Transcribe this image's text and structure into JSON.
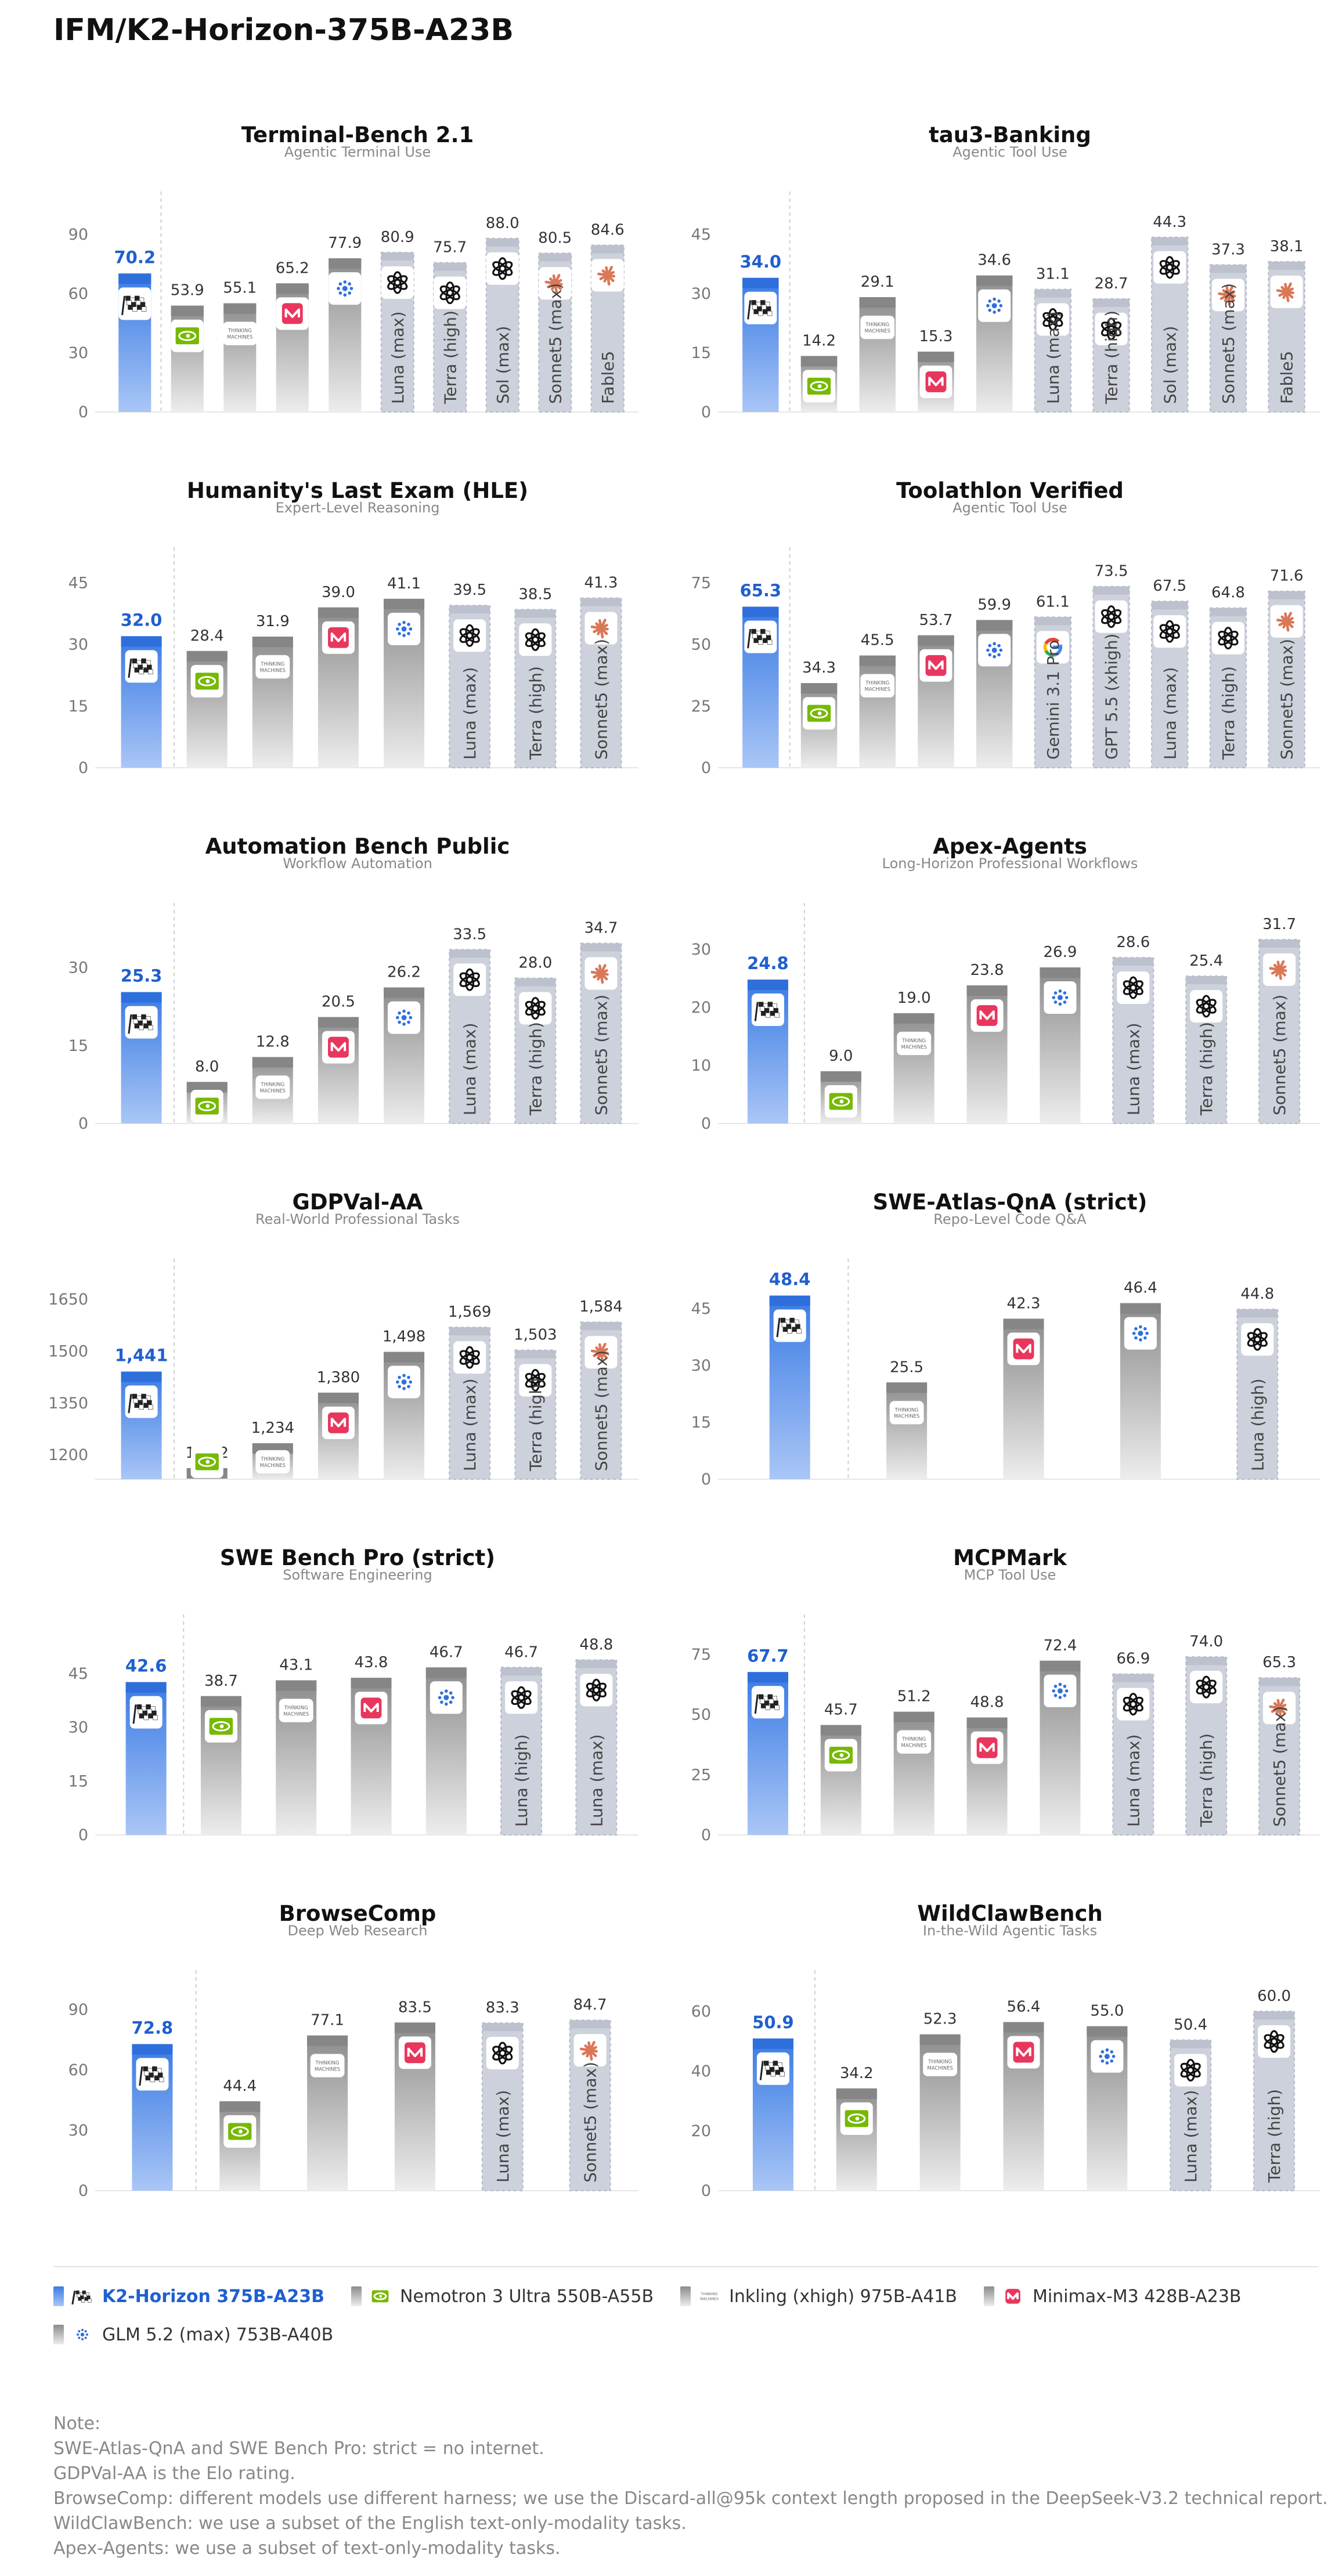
{
  "title": "IFM/K2-Horizon-375B-A23B",
  "colors": {
    "primary_top": "#3a7be4",
    "primary_bottom": "#aac6f6",
    "primary_label": "#1f5fcf",
    "open_top": "#8c8c8c",
    "open_bottom": "#ededed",
    "closed_fill": "#cdd1db",
    "closed_border": "#b4b9c8",
    "label": "#333333",
    "axis_text": "#777777",
    "subtitle": "#888888"
  },
  "models": {
    "k2": {
      "legend": "K2-Horizon 375B-A23B",
      "icon": "checkered-flag-icon",
      "kind": "primary"
    },
    "nemotron": {
      "legend": "Nemotron 3 Ultra 550B-A55B",
      "icon": "nvidia-eye-icon",
      "kind": "open"
    },
    "inkling": {
      "legend": "Inkling (xhigh) 975B-A41B",
      "icon": "thinking-machines-icon",
      "icon_text": "THINKING MACHINES",
      "kind": "open"
    },
    "minimax": {
      "legend": "Minimax-M3 428B-A23B",
      "icon": "minimax-wave-icon",
      "kind": "open"
    },
    "glm": {
      "legend": "GLM 5.2 (max) 753B-A40B",
      "icon": "glm-spark-icon",
      "kind": "open"
    },
    "openai": {
      "icon": "openai-knot-icon",
      "kind": "closed"
    },
    "anthropic": {
      "icon": "anthropic-burst-icon",
      "kind": "closed"
    },
    "google": {
      "icon": "google-g-icon",
      "kind": "closed"
    }
  },
  "legend_order": [
    "k2",
    "nemotron",
    "inkling",
    "minimax",
    "glm"
  ],
  "chart_data": [
    {
      "type": "bar",
      "title": "Terminal-Bench 2.1",
      "subtitle": "Agentic Terminal Use",
      "ylim": [
        0,
        100
      ],
      "yticks": [
        0,
        30,
        60,
        90
      ],
      "bars": [
        {
          "model": "k2",
          "value": 70.2,
          "label": "70.2"
        },
        {
          "model": "nemotron",
          "value": 53.9,
          "label": "53.9"
        },
        {
          "model": "inkling",
          "value": 55.1,
          "label": "55.1"
        },
        {
          "model": "minimax",
          "value": 65.2,
          "label": "65.2"
        },
        {
          "model": "glm",
          "value": 77.9,
          "label": "77.9"
        },
        {
          "model": "openai",
          "value": 80.9,
          "label": "80.9",
          "name": "Luna (max)"
        },
        {
          "model": "openai",
          "value": 75.7,
          "label": "75.7",
          "name": "Terra (high)"
        },
        {
          "model": "openai",
          "value": 88.0,
          "label": "88.0",
          "name": "Sol (max)"
        },
        {
          "model": "anthropic",
          "value": 80.5,
          "label": "80.5",
          "name": "Sonnet5 (max)"
        },
        {
          "model": "anthropic",
          "value": 84.6,
          "label": "84.6",
          "name": "Fable5"
        }
      ]
    },
    {
      "type": "bar",
      "title": "tau3-Banking",
      "subtitle": "Agentic Tool Use",
      "ylim": [
        0,
        50
      ],
      "yticks": [
        0,
        15,
        30,
        45
      ],
      "bars": [
        {
          "model": "k2",
          "value": 34.0,
          "label": "34.0"
        },
        {
          "model": "nemotron",
          "value": 14.2,
          "label": "14.2"
        },
        {
          "model": "inkling",
          "value": 29.1,
          "label": "29.1"
        },
        {
          "model": "minimax",
          "value": 15.3,
          "label": "15.3"
        },
        {
          "model": "glm",
          "value": 34.6,
          "label": "34.6"
        },
        {
          "model": "openai",
          "value": 31.1,
          "label": "31.1",
          "name": "Luna (max)"
        },
        {
          "model": "openai",
          "value": 28.7,
          "label": "28.7",
          "name": "Terra (high)"
        },
        {
          "model": "openai",
          "value": 44.3,
          "label": "44.3",
          "name": "Sol (max)"
        },
        {
          "model": "anthropic",
          "value": 37.3,
          "label": "37.3",
          "name": "Sonnet5 (max)"
        },
        {
          "model": "anthropic",
          "value": 38.1,
          "label": "38.1",
          "name": "Fable5"
        }
      ]
    },
    {
      "type": "bar",
      "title": "Humanity's Last Exam (HLE)",
      "subtitle": "Expert-Level Reasoning",
      "ylim": [
        0,
        48
      ],
      "yticks": [
        0,
        15,
        30,
        45
      ],
      "bars": [
        {
          "model": "k2",
          "value": 32.0,
          "label": "32.0"
        },
        {
          "model": "nemotron",
          "value": 28.4,
          "label": "28.4"
        },
        {
          "model": "inkling",
          "value": 31.9,
          "label": "31.9"
        },
        {
          "model": "minimax",
          "value": 39.0,
          "label": "39.0"
        },
        {
          "model": "glm",
          "value": 41.1,
          "label": "41.1"
        },
        {
          "model": "openai",
          "value": 39.5,
          "label": "39.5",
          "name": "Luna (max)"
        },
        {
          "model": "openai",
          "value": 38.5,
          "label": "38.5",
          "name": "Terra (high)"
        },
        {
          "model": "anthropic",
          "value": 41.3,
          "label": "41.3",
          "name": "Sonnet5 (max)"
        }
      ]
    },
    {
      "type": "bar",
      "title": "Toolathlon Verified",
      "subtitle": "Agentic Tool Use",
      "ylim": [
        0,
        80
      ],
      "yticks": [
        0,
        25,
        50,
        75
      ],
      "bars": [
        {
          "model": "k2",
          "value": 65.3,
          "label": "65.3"
        },
        {
          "model": "nemotron",
          "value": 34.3,
          "label": "34.3"
        },
        {
          "model": "inkling",
          "value": 45.5,
          "label": "45.5"
        },
        {
          "model": "minimax",
          "value": 53.7,
          "label": "53.7"
        },
        {
          "model": "glm",
          "value": 59.9,
          "label": "59.9"
        },
        {
          "model": "google",
          "value": 61.1,
          "label": "61.1",
          "name": "Gemini 3.1 Pro"
        },
        {
          "model": "openai",
          "value": 73.5,
          "label": "73.5",
          "name": "GPT 5.5 (xhigh)"
        },
        {
          "model": "openai",
          "value": 67.5,
          "label": "67.5",
          "name": "Luna (max)"
        },
        {
          "model": "openai",
          "value": 64.8,
          "label": "64.8",
          "name": "Terra (high)"
        },
        {
          "model": "anthropic",
          "value": 71.6,
          "label": "71.6",
          "name": "Sonnet5 (max)"
        }
      ]
    },
    {
      "type": "bar",
      "title": "Automation Bench Public",
      "subtitle": "Workflow Automation",
      "ylim": [
        0,
        38
      ],
      "yticks": [
        0,
        15,
        30
      ],
      "bars": [
        {
          "model": "k2",
          "value": 25.3,
          "label": "25.3"
        },
        {
          "model": "nemotron",
          "value": 8.0,
          "label": "8.0"
        },
        {
          "model": "inkling",
          "value": 12.8,
          "label": "12.8"
        },
        {
          "model": "minimax",
          "value": 20.5,
          "label": "20.5"
        },
        {
          "model": "glm",
          "value": 26.2,
          "label": "26.2"
        },
        {
          "model": "openai",
          "value": 33.5,
          "label": "33.5",
          "name": "Luna (max)"
        },
        {
          "model": "openai",
          "value": 28.0,
          "label": "28.0",
          "name": "Terra (high)"
        },
        {
          "model": "anthropic",
          "value": 34.7,
          "label": "34.7",
          "name": "Sonnet5 (max)"
        }
      ]
    },
    {
      "type": "bar",
      "title": "Apex-Agents",
      "subtitle": "Long-Horizon Professional Workflows",
      "ylim": [
        0,
        34
      ],
      "yticks": [
        0,
        10,
        20,
        30
      ],
      "bars": [
        {
          "model": "k2",
          "value": 24.8,
          "label": "24.8"
        },
        {
          "model": "nemotron",
          "value": 9.0,
          "label": "9.0"
        },
        {
          "model": "inkling",
          "value": 19.0,
          "label": "19.0"
        },
        {
          "model": "minimax",
          "value": 23.8,
          "label": "23.8"
        },
        {
          "model": "glm",
          "value": 26.9,
          "label": "26.9"
        },
        {
          "model": "openai",
          "value": 28.6,
          "label": "28.6",
          "name": "Luna (max)"
        },
        {
          "model": "openai",
          "value": 25.4,
          "label": "25.4",
          "name": "Terra (high)"
        },
        {
          "model": "anthropic",
          "value": 31.7,
          "label": "31.7",
          "name": "Sonnet5 (max)"
        }
      ]
    },
    {
      "type": "bar",
      "title": "GDPVal-AA",
      "subtitle": "Real-World Professional Tasks",
      "ylim": [
        1130,
        1700
      ],
      "yticks": [
        1200,
        1350,
        1500,
        1650
      ],
      "bars": [
        {
          "model": "k2",
          "value": 1441,
          "label": "1,441"
        },
        {
          "model": "nemotron",
          "value": 1162,
          "label": "1,162"
        },
        {
          "model": "inkling",
          "value": 1234,
          "label": "1,234"
        },
        {
          "model": "minimax",
          "value": 1380,
          "label": "1,380"
        },
        {
          "model": "glm",
          "value": 1498,
          "label": "1,498"
        },
        {
          "model": "openai",
          "value": 1569,
          "label": "1,569",
          "name": "Luna (max)"
        },
        {
          "model": "openai",
          "value": 1503,
          "label": "1,503",
          "name": "Terra (high)"
        },
        {
          "model": "anthropic",
          "value": 1584,
          "label": "1,584",
          "name": "Sonnet5 (max)"
        }
      ]
    },
    {
      "type": "bar",
      "title": "SWE-Atlas-QnA (strict)",
      "subtitle": "Repo-Level Code Q&A",
      "ylim": [
        0,
        52
      ],
      "yticks": [
        0,
        15,
        30,
        45
      ],
      "bars": [
        {
          "model": "k2",
          "value": 48.4,
          "label": "48.4"
        },
        {
          "model": "inkling",
          "value": 25.5,
          "label": "25.5"
        },
        {
          "model": "minimax",
          "value": 42.3,
          "label": "42.3"
        },
        {
          "model": "glm",
          "value": 46.4,
          "label": "46.4"
        },
        {
          "model": "openai",
          "value": 44.8,
          "label": "44.8",
          "name": "Luna (high)"
        }
      ]
    },
    {
      "type": "bar",
      "title": "SWE Bench Pro (strict)",
      "subtitle": "Software Engineering",
      "ylim": [
        0,
        55
      ],
      "yticks": [
        0,
        15,
        30,
        45
      ],
      "bars": [
        {
          "model": "k2",
          "value": 42.6,
          "label": "42.6"
        },
        {
          "model": "nemotron",
          "value": 38.7,
          "label": "38.7"
        },
        {
          "model": "inkling",
          "value": 43.1,
          "label": "43.1"
        },
        {
          "model": "minimax",
          "value": 43.8,
          "label": "43.8"
        },
        {
          "model": "glm",
          "value": 46.7,
          "label": "46.7"
        },
        {
          "model": "openai",
          "value": 46.7,
          "label": "46.7",
          "name": "Luna (high)"
        },
        {
          "model": "openai",
          "value": 48.8,
          "label": "48.8",
          "name": "Luna (max)"
        }
      ]
    },
    {
      "type": "bar",
      "title": "MCPMark",
      "subtitle": "MCP Tool Use",
      "ylim": [
        0,
        82
      ],
      "yticks": [
        0,
        25,
        50,
        75
      ],
      "bars": [
        {
          "model": "k2",
          "value": 67.7,
          "label": "67.7"
        },
        {
          "model": "nemotron",
          "value": 45.7,
          "label": "45.7"
        },
        {
          "model": "inkling",
          "value": 51.2,
          "label": "51.2"
        },
        {
          "model": "minimax",
          "value": 48.8,
          "label": "48.8"
        },
        {
          "model": "glm",
          "value": 72.4,
          "label": "72.4"
        },
        {
          "model": "openai",
          "value": 66.9,
          "label": "66.9",
          "name": "Luna (max)"
        },
        {
          "model": "openai",
          "value": 74.0,
          "label": "74.0",
          "name": "Terra (high)"
        },
        {
          "model": "anthropic",
          "value": 65.3,
          "label": "65.3",
          "name": "Sonnet5 (max)"
        }
      ]
    },
    {
      "type": "bar",
      "title": "BrowseComp",
      "subtitle": "Deep Web Research",
      "ylim": [
        0,
        98
      ],
      "yticks": [
        0,
        30,
        60,
        90
      ],
      "bars": [
        {
          "model": "k2",
          "value": 72.8,
          "label": "72.8"
        },
        {
          "model": "nemotron",
          "value": 44.4,
          "label": "44.4"
        },
        {
          "model": "inkling",
          "value": 77.1,
          "label": "77.1"
        },
        {
          "model": "minimax",
          "value": 83.5,
          "label": "83.5"
        },
        {
          "model": "openai",
          "value": 83.3,
          "label": "83.3",
          "name": "Luna (max)"
        },
        {
          "model": "anthropic",
          "value": 84.7,
          "label": "84.7",
          "name": "Sonnet5 (max)"
        }
      ]
    },
    {
      "type": "bar",
      "title": "WildClawBench",
      "subtitle": "In-the-Wild Agentic Tasks",
      "ylim": [
        0,
        66
      ],
      "yticks": [
        0,
        20,
        40,
        60
      ],
      "bars": [
        {
          "model": "k2",
          "value": 50.9,
          "label": "50.9"
        },
        {
          "model": "nemotron",
          "value": 34.2,
          "label": "34.2"
        },
        {
          "model": "inkling",
          "value": 52.3,
          "label": "52.3"
        },
        {
          "model": "minimax",
          "value": 56.4,
          "label": "56.4"
        },
        {
          "model": "glm",
          "value": 55.0,
          "label": "55.0"
        },
        {
          "model": "openai",
          "value": 50.4,
          "label": "50.4",
          "name": "Luna (max)"
        },
        {
          "model": "openai",
          "value": 60.0,
          "label": "60.0",
          "name": "Terra (high)"
        }
      ]
    }
  ],
  "notes": [
    "Note:",
    "SWE-Atlas-QnA and SWE Bench Pro: strict = no internet.",
    "GDPVal-AA is the Elo rating.",
    "BrowseComp: different models use different harness; we use the Discard-all@95k context length proposed in the DeepSeek-V3.2 technical report.",
    "WildClawBench: we use a subset of the English text-only-modality tasks.",
    "Apex-Agents: we use a subset of text-only-modality tasks."
  ]
}
